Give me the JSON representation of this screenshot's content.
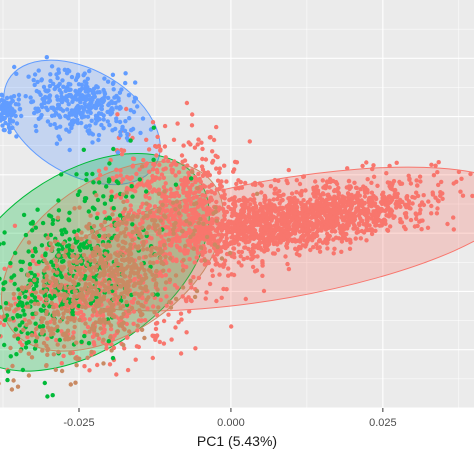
{
  "chart_data": {
    "type": "scatter",
    "title": "",
    "xlabel": "PC1 (5.43%)",
    "ylabel": "",
    "xlim": [
      -0.038,
      0.04
    ],
    "x_ticks": [
      -0.025,
      0.0,
      0.025
    ],
    "x_tick_labels": [
      "-0.025",
      "0.000",
      "0.025"
    ],
    "ylim": [
      -0.03,
      0.04
    ],
    "grid": true,
    "legend": "none",
    "panel_background": "#ebebeb",
    "gridline_color": "#ffffff",
    "series": [
      {
        "color": "#f8766d",
        "point_count": 2600,
        "clusters": [
          {
            "cx": 0.012,
            "cy": 0.0025,
            "sx": 0.01,
            "sy": 0.0032,
            "rho": 0.55,
            "weight": 0.6
          },
          {
            "cx": -0.008,
            "cy": 0.005,
            "sx": 0.006,
            "sy": 0.006,
            "rho": -0.2,
            "weight": 0.25
          },
          {
            "cx": -0.022,
            "cy": -0.012,
            "sx": 0.008,
            "sy": 0.005,
            "rho": 0.0,
            "weight": 0.15
          }
        ],
        "ellipse": {
          "cx": 0.008,
          "cy": -0.001,
          "rx": 0.0395,
          "ry": 0.0102,
          "angle_deg": 10
        }
      },
      {
        "color": "#619cff",
        "point_count": 430,
        "clusters": [
          {
            "cx": -0.025,
            "cy": 0.022,
            "sx": 0.0045,
            "sy": 0.003,
            "rho": -0.3,
            "weight": 0.8
          },
          {
            "cx": -0.037,
            "cy": 0.021,
            "sx": 0.001,
            "sy": 0.0015,
            "rho": 0.0,
            "weight": 0.2
          }
        ],
        "ellipse": {
          "cx": -0.0245,
          "cy": 0.019,
          "rx": 0.014,
          "ry": 0.009,
          "angle_deg": -30
        }
      },
      {
        "color": "#00ba38",
        "point_count": 420,
        "clusters": [
          {
            "cx": -0.028,
            "cy": -0.007,
            "sx": 0.007,
            "sy": 0.008,
            "rho": 0.55,
            "weight": 1.0
          }
        ],
        "ellipse": {
          "cx": -0.0245,
          "cy": -0.005,
          "rx": 0.0235,
          "ry": 0.015,
          "angle_deg": 35
        }
      },
      {
        "color": "#c98a63",
        "point_count": 700,
        "clusters": [
          {
            "cx": -0.021,
            "cy": -0.008,
            "sx": 0.0075,
            "sy": 0.007,
            "rho": 0.6,
            "weight": 1.0
          }
        ],
        "ellipse": {
          "cx": -0.0195,
          "cy": -0.004,
          "rx": 0.0205,
          "ry": 0.013,
          "angle_deg": 35
        }
      }
    ]
  }
}
